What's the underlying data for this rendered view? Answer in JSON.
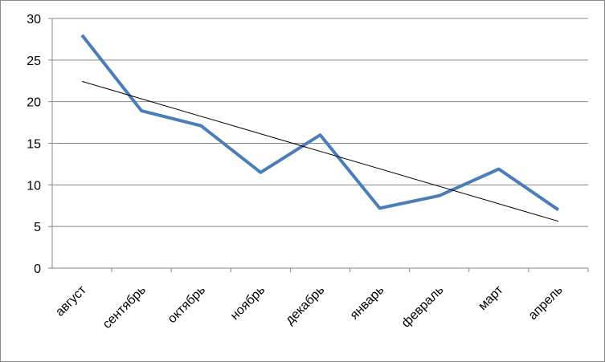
{
  "chart_data": {
    "type": "line",
    "categories": [
      "август",
      "сентябрь",
      "октябрь",
      "ноябрь",
      "декабрь",
      "январь",
      "февраль",
      "март",
      "апрель"
    ],
    "series": [
      {
        "color": "#4a7ebb",
        "values": [
          28,
          18.9,
          17.1,
          11.5,
          16,
          7.2,
          8.7,
          11.9,
          7
        ]
      }
    ],
    "trendline": "linear",
    "ylim": [
      0,
      30
    ],
    "yticks": [
      0,
      5,
      10,
      15,
      20,
      25,
      30
    ],
    "grid": true
  }
}
